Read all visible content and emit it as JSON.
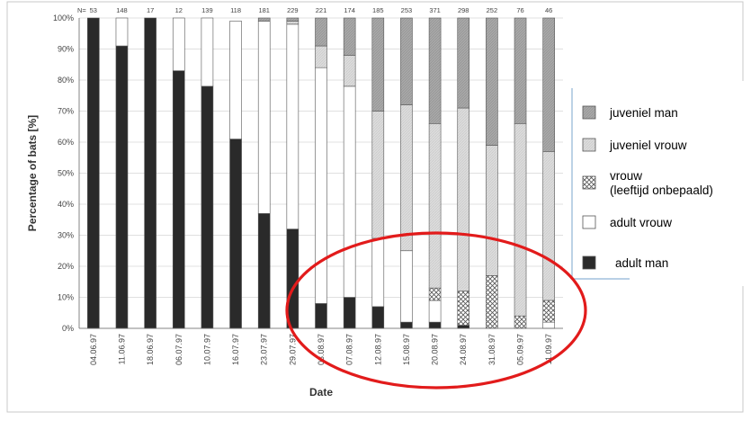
{
  "chart_data": {
    "type": "bar",
    "stacked": true,
    "title": "",
    "xlabel": "Date",
    "ylabel": "Percentage of bats [%]",
    "ylim": [
      0,
      100
    ],
    "yticks": [
      "0%",
      "10%",
      "20%",
      "30%",
      "40%",
      "50%",
      "60%",
      "70%",
      "80%",
      "90%",
      "100%"
    ],
    "n_prefix": "N=",
    "categories": [
      "04.06.97",
      "11.06.97",
      "18.06.97",
      "06.07.97",
      "10.07.97",
      "16.07.97",
      "23.07.97",
      "29.07.97",
      "03.08.97",
      "07.08.97",
      "12.08.97",
      "15.08.97",
      "20.08.97",
      "24.08.97",
      "31.08.97",
      "05.09.97",
      "11.09.97"
    ],
    "n": [
      53,
      148,
      17,
      12,
      139,
      118,
      181,
      229,
      221,
      174,
      185,
      253,
      371,
      298,
      252,
      76,
      46
    ],
    "series": [
      {
        "name": "adult man",
        "color": "#2a2a2a",
        "values": [
          100,
          91,
          100,
          83,
          78,
          61,
          37,
          32,
          8,
          10,
          7,
          2,
          2,
          1,
          0,
          0,
          0
        ]
      },
      {
        "name": "adult vrouw",
        "color": "#ffffff",
        "values": [
          0,
          9,
          0,
          17,
          22,
          38,
          62,
          66,
          76,
          68,
          22,
          23,
          7,
          0,
          0,
          0,
          2
        ]
      },
      {
        "name": "vrouw\n(leeftijd onbepaald)",
        "color": "#ffffff",
        "values": [
          0,
          0,
          0,
          0,
          0,
          0,
          0,
          0,
          0,
          0,
          0,
          0,
          4,
          11,
          17,
          4,
          7
        ]
      },
      {
        "name": "juveniel vrouw",
        "color": "#dcdcdc",
        "values": [
          0,
          0,
          0,
          0,
          0,
          0,
          0,
          1,
          7,
          10,
          41,
          47,
          53,
          59,
          42,
          62,
          48
        ]
      },
      {
        "name": "juveniel man",
        "color": "#a8a8a8",
        "values": [
          0,
          0,
          0,
          0,
          0,
          0,
          1,
          1,
          9,
          12,
          30,
          28,
          34,
          29,
          41,
          34,
          43
        ]
      }
    ],
    "legend": {
      "placement": "right",
      "order": [
        "juveniel man",
        "juveniel vrouw",
        "vrouw\n(leeftijd onbepaald)",
        "adult vrouw",
        "adult man"
      ]
    },
    "annotation": {
      "shape": "ellipse",
      "color": "#e21b1b"
    },
    "grid": true
  }
}
